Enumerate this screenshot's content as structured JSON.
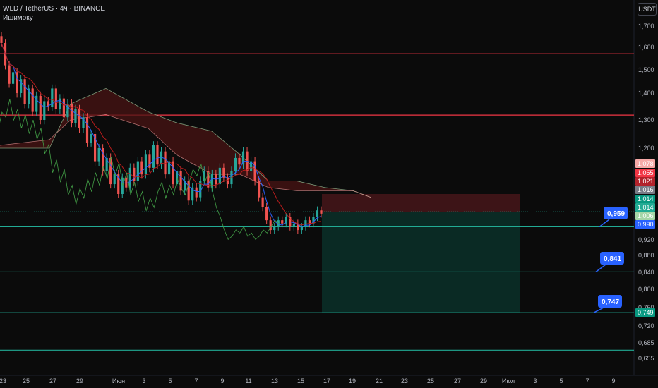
{
  "header": {
    "symbol": "WLD / TetherUS · 4ч · BINANCE",
    "indicator": "Ишимоку"
  },
  "currency_button": "USDT",
  "colors": {
    "background": "#0b0b0b",
    "up": "#26a69a",
    "down": "#ef5350",
    "resistance": "#f23645",
    "support": "#22ab94",
    "callout": "#2962ff"
  },
  "chart_data": {
    "type": "candlestick",
    "title": "",
    "xlabel": "",
    "ylabel": "",
    "x_ticks": [
      "23",
      "25",
      "27",
      "29",
      "Июн",
      "3",
      "5",
      "7",
      "9",
      "11",
      "13",
      "15",
      "17",
      "19",
      "21",
      "23",
      "25",
      "27",
      "29",
      "Июл",
      "3",
      "5",
      "7",
      "9"
    ],
    "y_ticks": [
      "1,700",
      "1,600",
      "1,500",
      "1,400",
      "1,300",
      "1,200",
      "0,920",
      "0,880",
      "0,840",
      "0,800",
      "0,760",
      "0,720",
      "0,685",
      "0,655"
    ],
    "ylim": [
      0.64,
      1.78
    ],
    "y_scale": "log",
    "resistance_levels": [
      1.571,
      1.318
    ],
    "support_levels": [
      0.96,
      0.841,
      0.749,
      0.671
    ],
    "callouts": [
      "0,959",
      "0,841",
      "0,747"
    ],
    "price_badges": [
      {
        "label": "1,078",
        "color": "#f7a9a7"
      },
      {
        "label": "1,055",
        "color": "#f23645"
      },
      {
        "label": "1,021",
        "color": "#b2222b"
      },
      {
        "label": "1,016",
        "color": "#787b86"
      },
      {
        "label": "1,014",
        "color": "#089981"
      },
      {
        "label": "1,014",
        "color": "#22ab94"
      },
      {
        "label": "1,006",
        "color": "#a5d6a7"
      },
      {
        "label": "0,990",
        "color": "#2962ff"
      },
      {
        "label": "0,749",
        "color": "#089981"
      }
    ],
    "position": {
      "entry": 1.006,
      "stop": 1.06,
      "target": 0.749
    },
    "series": [
      {
        "name": "",
        "kind": "ohlc",
        "closes": [
          1.62,
          1.52,
          1.44,
          1.49,
          1.4,
          1.46,
          1.36,
          1.42,
          1.33,
          1.39,
          1.3,
          1.37,
          1.35,
          1.42,
          1.34,
          1.38,
          1.31,
          1.36,
          1.29,
          1.34,
          1.27,
          1.31,
          1.22,
          1.25,
          1.16,
          1.2,
          1.13,
          1.17,
          1.09,
          1.12,
          1.06,
          1.11,
          1.08,
          1.14,
          1.1,
          1.16,
          1.12,
          1.18,
          1.14,
          1.21,
          1.15,
          1.19,
          1.12,
          1.16,
          1.09,
          1.13,
          1.07,
          1.1,
          1.04,
          1.08,
          1.05,
          1.1,
          1.13,
          1.08,
          1.12,
          1.09,
          1.14,
          1.11,
          1.09,
          1.13,
          1.17,
          1.15,
          1.19,
          1.13,
          1.16,
          1.1,
          1.05,
          1.02,
          0.98,
          0.95,
          0.96,
          0.98,
          0.97,
          0.99,
          0.96,
          0.97,
          0.95,
          0.96,
          0.98,
          0.97,
          0.99,
          1.01,
          1.0
        ]
      }
    ]
  }
}
